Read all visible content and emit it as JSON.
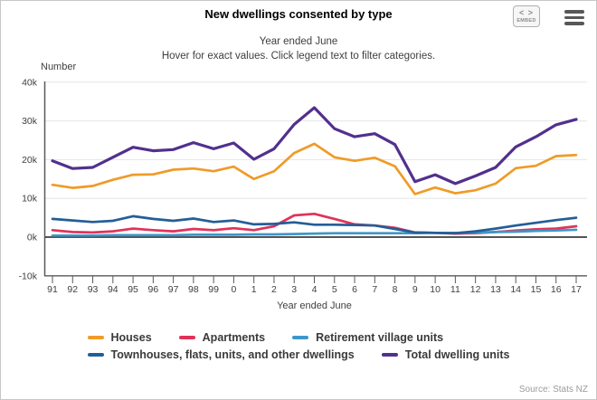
{
  "header": {
    "title": "New dwellings consented by type",
    "embed_button": {
      "glyph": "< >",
      "label": "EMBED"
    }
  },
  "subtitle": {
    "line1": "Year ended June",
    "line2": "Hover for exact values. Click legend text to filter categories."
  },
  "axes": {
    "y_label": "Number",
    "x_label": "Year ended June"
  },
  "legend": {
    "items": [
      {
        "label": "Houses",
        "color": "#ef9b28"
      },
      {
        "label": "Apartments",
        "color": "#e0335a"
      },
      {
        "label": "Retirement village units",
        "color": "#3e97c9"
      },
      {
        "label": "Townhouses, flats, units, and other dwellings",
        "color": "#235e98"
      },
      {
        "label": "Total dwelling units",
        "color": "#52308d"
      }
    ]
  },
  "source": "Source: Stats NZ",
  "chart_data": {
    "type": "line",
    "title": "New dwellings consented by type",
    "subtitle": "Year ended June",
    "xlabel": "Year ended June",
    "ylabel": "Number",
    "grid": true,
    "legend_position": "bottom",
    "ylim": [
      -10000,
      40000
    ],
    "y_ticks": [
      {
        "label": "40k",
        "value": 40000
      },
      {
        "label": "30k",
        "value": 30000
      },
      {
        "label": "20k",
        "value": 20000
      },
      {
        "label": "10k",
        "value": 10000
      },
      {
        "label": "0k",
        "value": 0
      },
      {
        "label": "-10k",
        "value": -10000
      }
    ],
    "x_categories": [
      "91",
      "92",
      "93",
      "94",
      "95",
      "96",
      "97",
      "98",
      "99",
      "0",
      "1",
      "2",
      "3",
      "4",
      "5",
      "6",
      "7",
      "8",
      "9",
      "10",
      "11",
      "12",
      "13",
      "14",
      "15",
      "16",
      "17"
    ],
    "series": [
      {
        "name": "Houses",
        "color": "#ef9b28",
        "values": [
          13500,
          12700,
          13200,
          14800,
          16100,
          16200,
          17400,
          17700,
          17000,
          18200,
          15000,
          17000,
          21700,
          24100,
          20600,
          19700,
          20500,
          18300,
          11100,
          12800,
          11300,
          12100,
          13800,
          17800,
          18400,
          20900,
          21200
        ]
      },
      {
        "name": "Apartments",
        "color": "#e0335a",
        "values": [
          1800,
          1300,
          1200,
          1500,
          2200,
          1800,
          1500,
          2100,
          1800,
          2300,
          1800,
          2800,
          5600,
          6000,
          4700,
          3300,
          3000,
          2400,
          1200,
          1100,
          900,
          1000,
          1300,
          1700,
          2000,
          2200,
          2800
        ]
      },
      {
        "name": "Retirement village units",
        "color": "#3e97c9",
        "values": [
          400,
          400,
          400,
          500,
          500,
          500,
          500,
          600,
          600,
          600,
          700,
          700,
          800,
          900,
          1000,
          1000,
          1000,
          1000,
          1000,
          1100,
          1100,
          1200,
          1300,
          1400,
          1600,
          1700,
          1900
        ]
      },
      {
        "name": "Townhouses, flats, units, and other dwellings",
        "color": "#235e98",
        "values": [
          4700,
          4300,
          3900,
          4200,
          5400,
          4700,
          4200,
          4800,
          3900,
          4300,
          3300,
          3400,
          3800,
          3200,
          3200,
          3100,
          3000,
          2100,
          1200,
          1100,
          1000,
          1500,
          2200,
          3000,
          3700,
          4400,
          5000
        ]
      },
      {
        "name": "Total dwelling units",
        "color": "#52308d",
        "values": [
          19700,
          17700,
          18000,
          20600,
          23200,
          22300,
          22600,
          24400,
          22800,
          24300,
          20100,
          22800,
          29100,
          33400,
          28000,
          25900,
          26700,
          23900,
          14300,
          16100,
          13800,
          15800,
          18000,
          23300,
          25900,
          29000,
          30400
        ]
      }
    ]
  }
}
